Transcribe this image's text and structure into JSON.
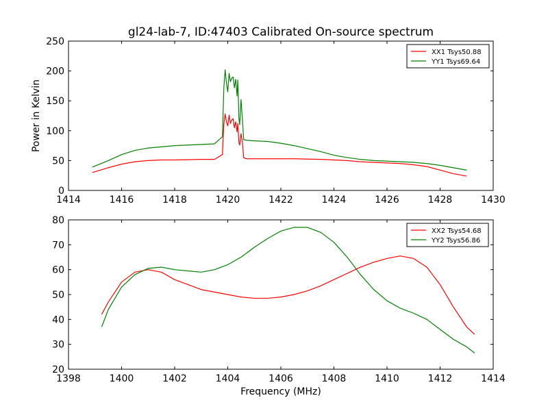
{
  "figure": {
    "title": "gl24-lab-7, ID:47403 Calibrated On-source spectrum"
  },
  "chart_data": [
    {
      "type": "line",
      "title": "gl24-lab-7, ID:47403 Calibrated On-source spectrum",
      "xlabel": "",
      "ylabel": "Power in Kelvin",
      "xlim": [
        1414,
        1430
      ],
      "ylim": [
        0,
        250
      ],
      "xticks": [
        "1414",
        "1416",
        "1418",
        "1420",
        "1422",
        "1424",
        "1426",
        "1428",
        "1430"
      ],
      "yticks": [
        "0",
        "50",
        "100",
        "150",
        "200",
        "250"
      ],
      "grid": false,
      "legend_position": "top-right",
      "series": [
        {
          "name": "XX1 Tsys50.88",
          "color": "#ff0000",
          "x": [
            1414.9,
            1415.5,
            1416,
            1416.5,
            1417,
            1417.5,
            1418,
            1418.5,
            1419,
            1419.5,
            1419.8,
            1419.85,
            1419.9,
            1419.95,
            1420.0,
            1420.05,
            1420.1,
            1420.15,
            1420.2,
            1420.25,
            1420.3,
            1420.35,
            1420.38,
            1420.42,
            1420.45,
            1420.5,
            1420.55,
            1420.6,
            1420.7,
            1421,
            1421.5,
            1422,
            1422.5,
            1423,
            1423.5,
            1424,
            1424.5,
            1425,
            1425.5,
            1426,
            1426.5,
            1427,
            1427.5,
            1428,
            1428.5,
            1429
          ],
          "y": [
            30,
            38,
            44,
            48,
            50,
            51,
            51,
            51.5,
            52,
            52,
            60,
            110,
            128,
            115,
            108,
            126,
            112,
            118,
            120,
            105,
            115,
            98,
            112,
            80,
            76,
            95,
            82,
            55,
            53,
            53,
            53,
            53,
            53,
            52.5,
            52,
            51,
            50,
            48,
            47,
            46,
            45,
            43,
            40,
            34,
            28,
            24
          ]
        },
        {
          "name": "YY1 Tsys69.64",
          "color": "#008000",
          "x": [
            1414.9,
            1415.5,
            1416,
            1416.5,
            1417,
            1417.5,
            1418,
            1418.5,
            1419,
            1419.5,
            1419.8,
            1419.85,
            1419.9,
            1419.95,
            1420.0,
            1420.05,
            1420.1,
            1420.15,
            1420.2,
            1420.25,
            1420.3,
            1420.35,
            1420.38,
            1420.42,
            1420.45,
            1420.5,
            1420.55,
            1420.6,
            1420.7,
            1421,
            1421.5,
            1422,
            1422.5,
            1423,
            1423.5,
            1424,
            1424.5,
            1425,
            1425.5,
            1426,
            1426.5,
            1427,
            1427.5,
            1428,
            1428.5,
            1429
          ],
          "y": [
            39,
            50,
            60,
            67,
            71,
            73,
            75,
            76,
            77,
            78,
            90,
            170,
            202,
            180,
            165,
            196,
            182,
            188,
            190,
            172,
            186,
            158,
            185,
            120,
            110,
            152,
            120,
            85,
            84,
            83,
            82,
            79,
            75,
            70,
            65,
            59,
            55,
            52,
            50,
            49,
            48,
            47,
            45,
            42,
            38,
            34
          ]
        }
      ]
    },
    {
      "type": "line",
      "title": "",
      "xlabel": "Frequency (MHz)",
      "ylabel": "",
      "xlim": [
        1398,
        1414
      ],
      "ylim": [
        20,
        80
      ],
      "xticks": [
        "1398",
        "1400",
        "1402",
        "1404",
        "1406",
        "1408",
        "1410",
        "1412",
        "1414"
      ],
      "yticks": [
        "20",
        "30",
        "40",
        "50",
        "60",
        "70",
        "80"
      ],
      "grid": false,
      "legend_position": "top-right",
      "series": [
        {
          "name": "XX2 Tsys54.68",
          "color": "#ff0000",
          "x": [
            1399.25,
            1399.5,
            1400,
            1400.5,
            1401,
            1401.5,
            1402,
            1402.5,
            1403,
            1403.5,
            1404,
            1404.5,
            1405,
            1405.5,
            1406,
            1406.5,
            1407,
            1407.5,
            1408,
            1408.5,
            1409,
            1409.5,
            1410,
            1410.5,
            1411,
            1411.5,
            1412,
            1412.5,
            1413,
            1413.3
          ],
          "y": [
            42,
            47,
            55,
            59,
            60,
            59,
            56,
            54,
            52,
            51,
            50,
            49,
            48.5,
            48.5,
            49,
            50,
            51.5,
            53.5,
            56,
            58.5,
            61,
            63,
            64.5,
            65.5,
            64.5,
            61,
            54,
            45,
            37,
            34
          ]
        },
        {
          "name": "YY2 Tsys56.86",
          "color": "#008000",
          "x": [
            1399.25,
            1399.5,
            1400,
            1400.5,
            1401,
            1401.5,
            1402,
            1402.5,
            1403,
            1403.5,
            1404,
            1404.5,
            1405,
            1405.5,
            1406,
            1406.5,
            1407,
            1407.5,
            1408,
            1408.5,
            1409,
            1409.5,
            1410,
            1410.5,
            1411,
            1411.5,
            1412,
            1412.5,
            1413,
            1413.3
          ],
          "y": [
            37,
            44,
            53,
            58,
            60.5,
            61,
            60,
            59.5,
            59,
            60,
            62,
            65,
            69,
            72.5,
            75.5,
            77,
            77,
            75,
            71,
            65,
            58,
            52,
            47.5,
            44.5,
            42.5,
            40,
            36,
            32,
            29,
            26.5
          ]
        }
      ]
    }
  ]
}
